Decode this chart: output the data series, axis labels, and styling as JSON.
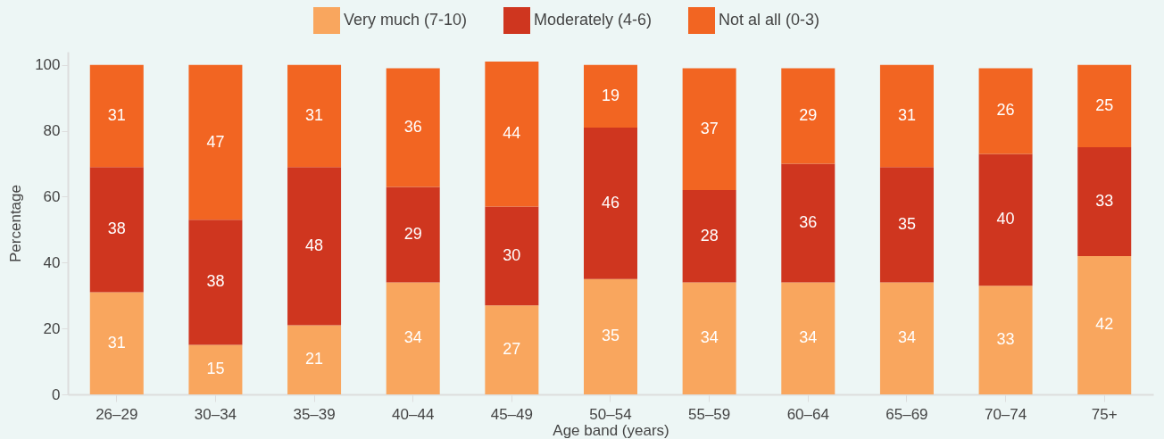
{
  "chart_data": {
    "type": "bar",
    "stacked": true,
    "xlabel": "Age band (years)",
    "ylabel": "Percentage",
    "categories": [
      "26–29",
      "30–34",
      "35–39",
      "40–44",
      "45–49",
      "50–54",
      "55–59",
      "60–64",
      "65–69",
      "70–74",
      "75+"
    ],
    "series": [
      {
        "name": "Very much (7-10)",
        "color": "#f9a65e",
        "values": [
          31,
          15,
          21,
          34,
          27,
          35,
          34,
          34,
          34,
          33,
          42
        ]
      },
      {
        "name": "Moderately (4-6)",
        "color": "#cf361f",
        "values": [
          38,
          38,
          48,
          29,
          30,
          46,
          28,
          36,
          35,
          40,
          33
        ]
      },
      {
        "name": "Not al all (0-3)",
        "color": "#f26522",
        "values": [
          31,
          47,
          31,
          36,
          44,
          19,
          37,
          29,
          31,
          26,
          25
        ]
      }
    ],
    "ylim": [
      0,
      104
    ],
    "yticks": [
      0,
      20,
      40,
      60,
      80,
      100
    ],
    "grid": false,
    "legend": "top",
    "data_labels": true
  }
}
